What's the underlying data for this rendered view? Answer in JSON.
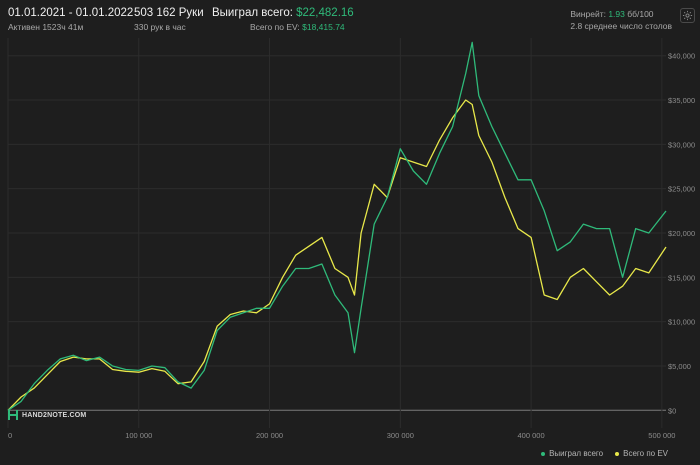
{
  "header": {
    "period": {
      "main": "01.01.2021 - 01.01.2022",
      "sub": "Активен 1523ч 41м"
    },
    "hands": {
      "main": "503 162 Руки",
      "sub": "330 рук в час"
    },
    "won": {
      "label": "Выиграл всего:",
      "value": "$22,482.16",
      "sub_label": "Всего по EV:",
      "sub_value": "$18,415.74"
    },
    "winrate": {
      "label": "Винрейт:",
      "value": "1.93",
      "unit": "бб/100",
      "tables": "2.8 среднее число столов"
    }
  },
  "logo": {
    "text": "HAND2NOTE.COM"
  },
  "legend": [
    {
      "label": "Выиграл всего",
      "color": "#2fba7a"
    },
    {
      "label": "Всего по EV",
      "color": "#e8e84a"
    }
  ],
  "colors": {
    "won": "#2fba7a",
    "ev": "#e8e84a",
    "background": "#1e1e1e",
    "grid": "#2c2c2c",
    "zero_line": "#7a7a7a"
  },
  "chart_data": {
    "type": "line",
    "title": "",
    "xlabel": "",
    "ylabel": "",
    "x_ticks": [
      "0",
      "100 000",
      "200 000",
      "300 000",
      "400 000",
      "500 000"
    ],
    "x_tick_values": [
      0,
      100000,
      200000,
      300000,
      400000,
      500000
    ],
    "y_ticks": [
      "$40,000",
      "$35,000",
      "$30,000",
      "$25,000",
      "$20,000",
      "$15,000",
      "$10,000",
      "$5,000",
      "$0"
    ],
    "y_tick_values": [
      40000,
      35000,
      30000,
      25000,
      20000,
      15000,
      10000,
      5000,
      0
    ],
    "xlim": [
      0,
      503162
    ],
    "ylim": [
      -2000,
      42000
    ],
    "grid": true,
    "legend_position": "bottom-right",
    "series": [
      {
        "name": "Выиграл всего",
        "x": [
          0,
          10000,
          20000,
          30000,
          40000,
          50000,
          60000,
          70000,
          80000,
          90000,
          100000,
          110000,
          120000,
          130000,
          140000,
          150000,
          160000,
          170000,
          180000,
          190000,
          200000,
          210000,
          220000,
          230000,
          240000,
          250000,
          260000,
          265000,
          270000,
          280000,
          290000,
          300000,
          310000,
          320000,
          330000,
          340000,
          350000,
          355000,
          360000,
          370000,
          380000,
          390000,
          400000,
          410000,
          420000,
          430000,
          440000,
          450000,
          460000,
          470000,
          480000,
          490000,
          503162
        ],
        "values": [
          0,
          1000,
          3000,
          4500,
          5800,
          6200,
          5600,
          6000,
          5000,
          4600,
          4500,
          5000,
          4800,
          3200,
          2500,
          4500,
          9000,
          10500,
          11000,
          11500,
          11500,
          14000,
          16000,
          16000,
          16500,
          13000,
          11000,
          6500,
          11500,
          21000,
          24000,
          29500,
          27000,
          25500,
          29000,
          32000,
          38000,
          41500,
          35500,
          32000,
          29000,
          26000,
          26000,
          22500,
          18000,
          19000,
          21000,
          20500,
          20500,
          15000,
          20500,
          20000,
          22482
        ]
      },
      {
        "name": "Всего по EV",
        "x": [
          0,
          10000,
          20000,
          30000,
          40000,
          50000,
          60000,
          70000,
          80000,
          90000,
          100000,
          110000,
          120000,
          130000,
          140000,
          150000,
          160000,
          170000,
          180000,
          190000,
          200000,
          210000,
          220000,
          230000,
          240000,
          250000,
          260000,
          265000,
          270000,
          280000,
          290000,
          300000,
          310000,
          320000,
          330000,
          340000,
          350000,
          355000,
          360000,
          370000,
          380000,
          390000,
          400000,
          410000,
          420000,
          430000,
          440000,
          450000,
          460000,
          470000,
          480000,
          490000,
          503162
        ],
        "values": [
          0,
          1500,
          2500,
          4000,
          5500,
          6000,
          5800,
          5800,
          4600,
          4400,
          4300,
          4700,
          4400,
          3000,
          3200,
          5500,
          9500,
          10800,
          11200,
          11000,
          12000,
          15000,
          17500,
          18500,
          19500,
          16000,
          15000,
          13000,
          20000,
          25500,
          24000,
          28500,
          28000,
          27500,
          30500,
          33000,
          35000,
          34500,
          31000,
          28000,
          24000,
          20500,
          19500,
          13000,
          12500,
          15000,
          16000,
          14500,
          13000,
          14000,
          16000,
          15500,
          18416
        ]
      }
    ]
  }
}
